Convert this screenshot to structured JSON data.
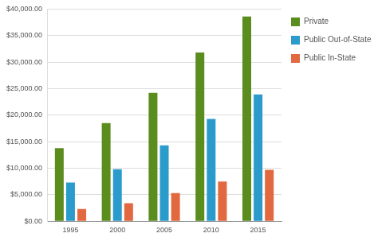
{
  "chart_data": {
    "type": "bar",
    "categories": [
      "1995",
      "2000",
      "2005",
      "2010",
      "2015"
    ],
    "series": [
      {
        "name": "Private",
        "color": "#5b8c1e",
        "values": [
          13800,
          18500,
          24200,
          31800,
          38600
        ]
      },
      {
        "name": "Public Out-of-State",
        "color": "#2b9bcc",
        "values": [
          7300,
          9800,
          14300,
          19300,
          23900
        ]
      },
      {
        "name": "Public In-State",
        "color": "#e2693f",
        "values": [
          2300,
          3400,
          5300,
          7500,
          9700
        ]
      }
    ],
    "ylim": [
      0,
      40000
    ],
    "yticks": [
      {
        "value": 0,
        "label": "$0.00"
      },
      {
        "value": 5000,
        "label": "$5,000.00"
      },
      {
        "value": 10000,
        "label": "$10,000.00"
      },
      {
        "value": 15000,
        "label": "$15,000.00"
      },
      {
        "value": 20000,
        "label": "$20,000.00"
      },
      {
        "value": 25000,
        "label": "$25,000.00"
      },
      {
        "value": 30000,
        "label": "$30,000.00"
      },
      {
        "value": 35000,
        "label": "$35,000.00"
      },
      {
        "value": 40000,
        "label": "$40,000.00"
      }
    ],
    "grid": true,
    "legend": "right"
  }
}
